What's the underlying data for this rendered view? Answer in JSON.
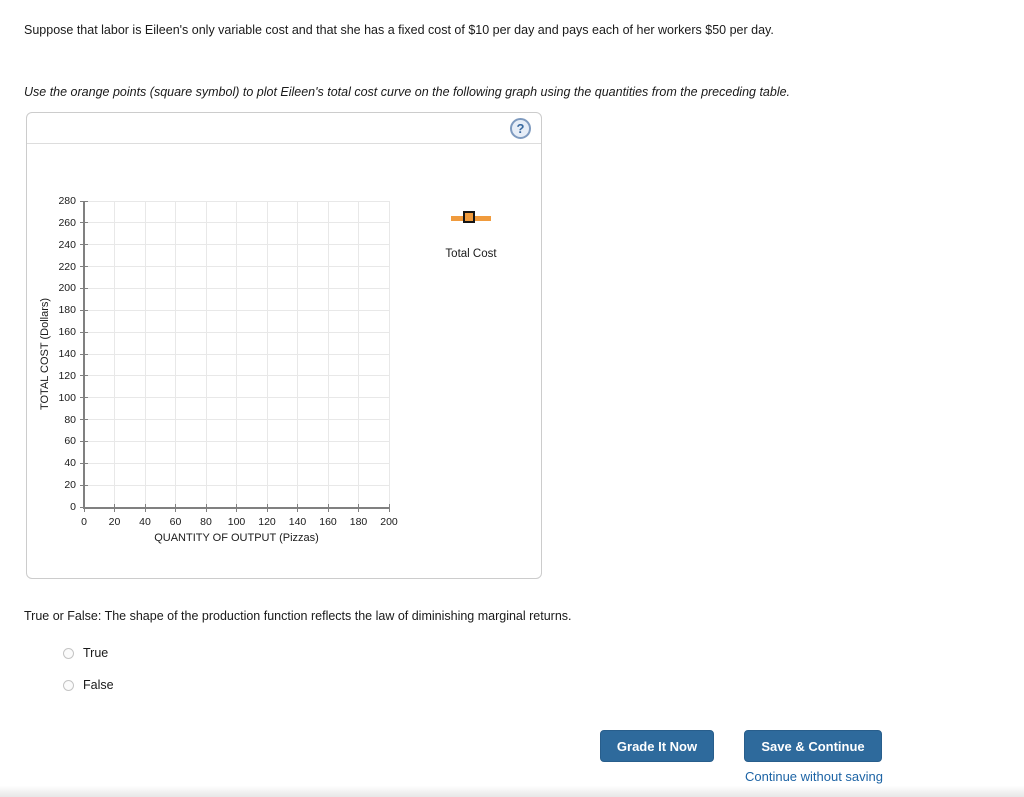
{
  "page": {
    "intro_text": "Suppose that labor is Eileen's only variable cost and that she has a fixed cost of $10 per day and pays each of her workers $50 per day.",
    "instruction_text": "Use the orange points (square symbol) to plot Eileen's total cost curve on the following graph using the quantities from the preceding table.",
    "help_icon": "?",
    "true_false_question": "True or False: The shape of the production function reflects the law of diminishing marginal returns.",
    "options": [
      {
        "label": "True",
        "selected": false
      },
      {
        "label": "False",
        "selected": false
      }
    ],
    "buttons": {
      "grade_it_now": "Grade It Now",
      "save_and_continue": "Save & Continue",
      "continue_without_saving": "Continue without saving"
    }
  },
  "chart_data": {
    "type": "scatter",
    "title": "",
    "xlabel": "QUANTITY OF OUTPUT (Pizzas)",
    "ylabel": "TOTAL COST (Dollars)",
    "xlim": [
      0,
      200
    ],
    "ylim": [
      0,
      280
    ],
    "x_ticks": [
      0,
      20,
      40,
      60,
      80,
      100,
      120,
      140,
      160,
      180,
      200
    ],
    "y_ticks": [
      0,
      20,
      40,
      60,
      80,
      100,
      120,
      140,
      160,
      180,
      200,
      220,
      240,
      260,
      280
    ],
    "grid": true,
    "legend_position": "right",
    "series": [
      {
        "name": "Total Cost",
        "marker": "square",
        "marker_color": "#F09B3D",
        "marker_border": "#151515",
        "points": []
      }
    ]
  },
  "colors": {
    "primary_button": "#2E6A9C",
    "button_text": "#FFFFFF",
    "link": "#1D64A5",
    "legend_orange": "#F09B3D",
    "axis": "#808080",
    "grid": "#E8E8E8",
    "panel_border": "#CCCCCC",
    "help_icon_border": "#7E9ABF",
    "help_icon_bg": "#E6EDF7",
    "help_icon_text": "#39699F",
    "text": "#1A1A1A"
  }
}
